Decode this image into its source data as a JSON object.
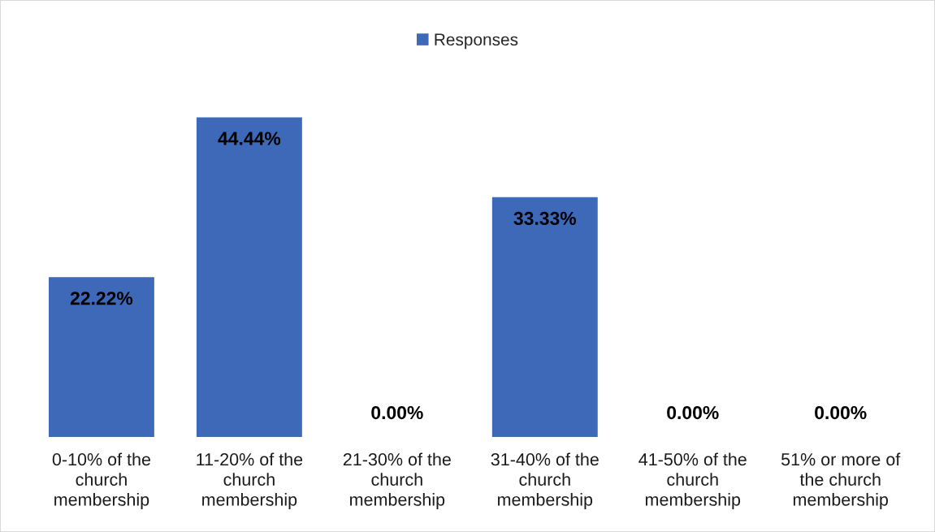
{
  "chart_data": {
    "type": "bar",
    "categories": [
      "0-10% of the\nchurch\nmembership",
      "11-20% of the\nchurch\nmembership",
      "21-30% of the\nchurch\nmembership",
      "31-40% of the\nchurch\nmembership",
      "41-50% of the\nchurch\nmembership",
      "51% or more of\nthe church\nmembership"
    ],
    "series": [
      {
        "name": "Responses",
        "color": "#3d69b8",
        "values": [
          22.22,
          44.44,
          0,
          33.33,
          0,
          0
        ],
        "value_labels": [
          "22.22%",
          "44.44%",
          "0.00%",
          "33.33%",
          "0.00%",
          "0.00%"
        ]
      }
    ],
    "legend": "top",
    "tick_labels": "x"
  }
}
